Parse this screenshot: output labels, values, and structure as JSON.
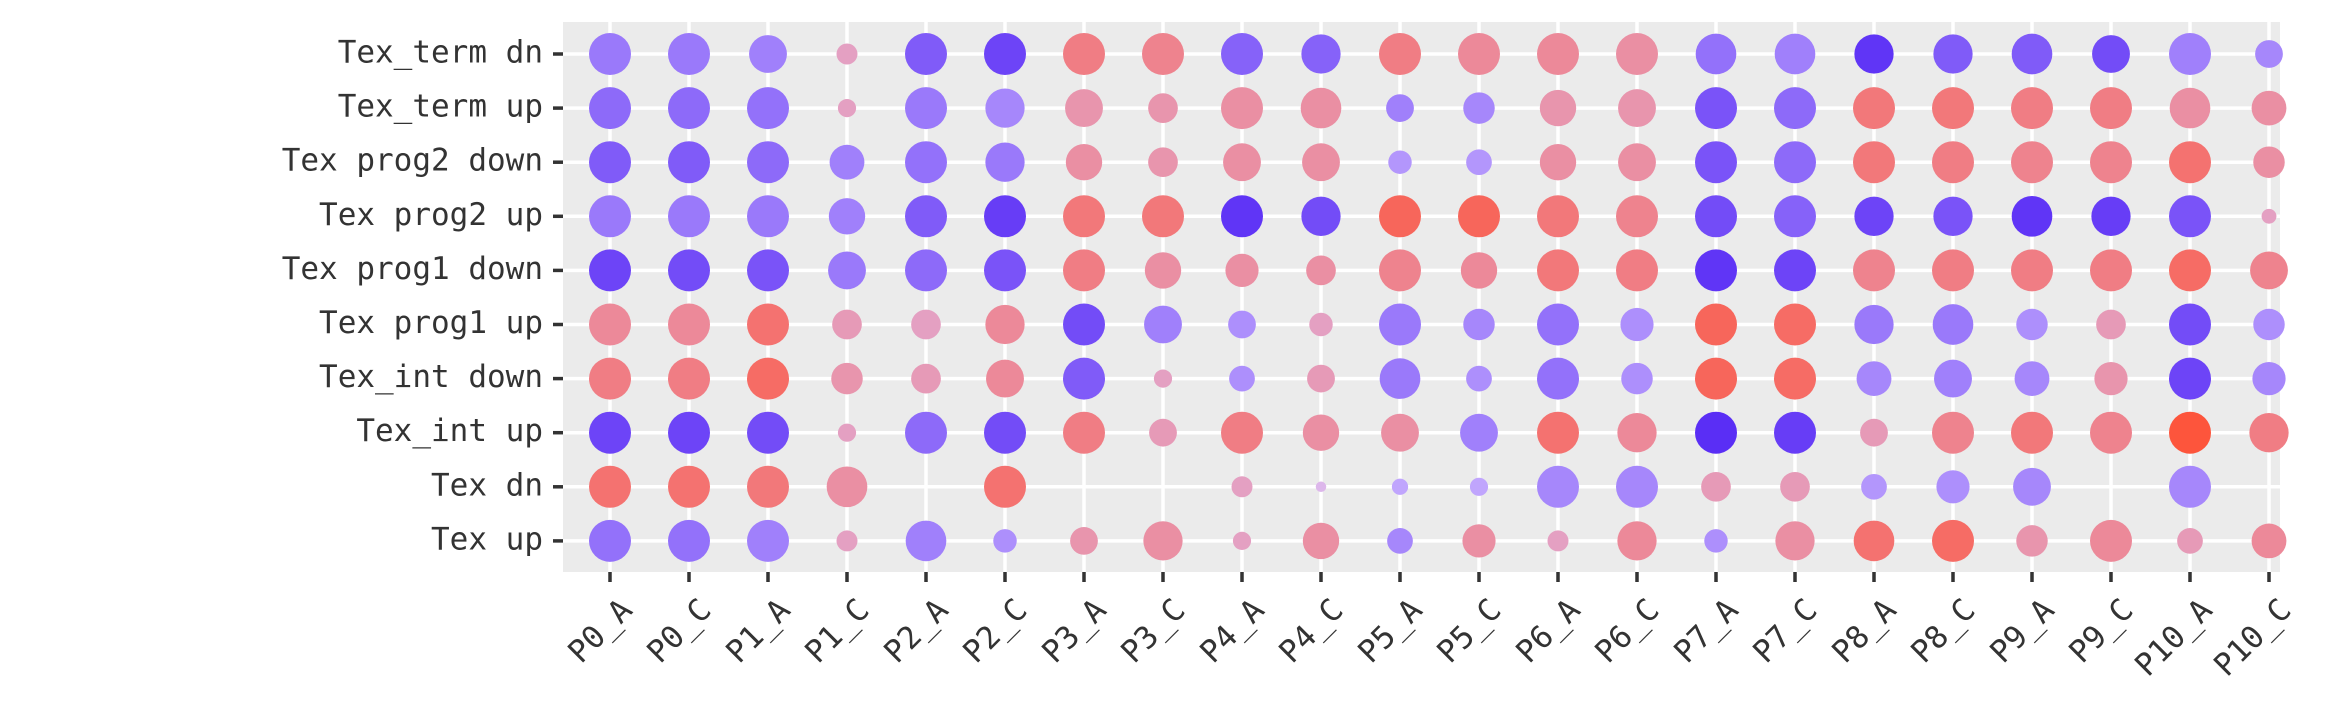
{
  "chart_data": {
    "type": "scatter",
    "subtype": "dot-matrix",
    "title": "",
    "xlabel": "",
    "ylabel": "",
    "x_categories": [
      "P0_A",
      "P0_C",
      "P1_A",
      "P1_C",
      "P2_A",
      "P2_C",
      "P3_A",
      "P3_C",
      "P4_A",
      "P4_C",
      "P5_A",
      "P5_C",
      "P6_A",
      "P6_C",
      "P7_A",
      "P7_C",
      "P8_A",
      "P8_C",
      "P9_A",
      "P9_C",
      "P10_A",
      "P10_C"
    ],
    "y_categories": [
      "Tex_term dn",
      "Tex_term up",
      "Tex prog2 down",
      "Tex prog2 up",
      "Tex prog1 down",
      "Tex prog1 up",
      "Tex_int down",
      "Tex_int up",
      "Tex dn",
      "Tex up"
    ],
    "grid": true,
    "legend": "none",
    "color_scale": {
      "low": "#5a2ef5",
      "mid": "#d9c3ff",
      "high": "#ff4f32"
    },
    "value_description": "size and color encode per-cell values (color: -1 = blue/purple .. 1 = red/orange; size: 0..1)",
    "rows": [
      {
        "name": "Tex_term dn",
        "color": [
          -0.5,
          -0.5,
          -0.45,
          0.3,
          -0.7,
          -0.85,
          0.6,
          0.55,
          -0.65,
          -0.65,
          0.6,
          0.5,
          0.5,
          0.45,
          -0.55,
          -0.45,
          -0.95,
          -0.7,
          -0.7,
          -0.8,
          -0.45,
          -0.4
        ],
        "size": [
          0.8,
          0.8,
          0.65,
          0.2,
          0.8,
          0.8,
          0.8,
          0.8,
          0.8,
          0.7,
          0.8,
          0.8,
          0.8,
          0.8,
          0.75,
          0.75,
          0.7,
          0.7,
          0.75,
          0.65,
          0.8,
          0.35
        ]
      },
      {
        "name": "Tex_term up",
        "color": [
          -0.6,
          -0.6,
          -0.55,
          0.3,
          -0.5,
          -0.4,
          0.4,
          0.4,
          0.45,
          0.45,
          -0.45,
          -0.4,
          0.4,
          0.4,
          -0.75,
          -0.6,
          0.65,
          0.65,
          0.6,
          0.6,
          0.45,
          0.45
        ],
        "size": [
          0.8,
          0.8,
          0.8,
          0.15,
          0.8,
          0.7,
          0.65,
          0.4,
          0.8,
          0.75,
          0.35,
          0.45,
          0.6,
          0.65,
          0.8,
          0.8,
          0.8,
          0.8,
          0.8,
          0.8,
          0.75,
          0.55
        ]
      },
      {
        "name": "Tex prog2 down",
        "color": [
          -0.7,
          -0.7,
          -0.6,
          -0.45,
          -0.55,
          -0.5,
          0.45,
          0.4,
          0.45,
          0.45,
          -0.3,
          -0.3,
          0.45,
          0.45,
          -0.75,
          -0.6,
          0.65,
          0.6,
          0.55,
          0.55,
          0.7,
          0.45
        ],
        "size": [
          0.8,
          0.8,
          0.8,
          0.55,
          0.8,
          0.7,
          0.6,
          0.4,
          0.65,
          0.65,
          0.25,
          0.3,
          0.6,
          0.65,
          0.8,
          0.8,
          0.8,
          0.8,
          0.8,
          0.8,
          0.8,
          0.45
        ]
      },
      {
        "name": "Tex prog2 up",
        "color": [
          -0.5,
          -0.5,
          -0.5,
          -0.45,
          -0.7,
          -0.9,
          0.65,
          0.65,
          -0.95,
          -0.8,
          0.8,
          0.8,
          0.65,
          0.55,
          -0.8,
          -0.65,
          -0.85,
          -0.75,
          -0.95,
          -0.9,
          -0.75,
          0.3
        ],
        "size": [
          0.8,
          0.8,
          0.8,
          0.6,
          0.8,
          0.8,
          0.8,
          0.8,
          0.8,
          0.7,
          0.8,
          0.8,
          0.8,
          0.8,
          0.8,
          0.8,
          0.7,
          0.7,
          0.75,
          0.7,
          0.8,
          0.1
        ]
      },
      {
        "name": "Tex prog1 down",
        "color": [
          -0.85,
          -0.8,
          -0.75,
          -0.5,
          -0.6,
          -0.75,
          0.6,
          0.45,
          0.45,
          0.45,
          0.55,
          0.5,
          0.65,
          0.6,
          -0.95,
          -0.85,
          0.55,
          0.6,
          0.6,
          0.6,
          0.75,
          0.55
        ],
        "size": [
          0.8,
          0.8,
          0.8,
          0.65,
          0.8,
          0.8,
          0.8,
          0.6,
          0.5,
          0.4,
          0.8,
          0.6,
          0.8,
          0.8,
          0.8,
          0.8,
          0.8,
          0.8,
          0.8,
          0.8,
          0.8,
          0.65
        ]
      },
      {
        "name": "Tex prog1 up",
        "color": [
          0.5,
          0.5,
          0.7,
          0.35,
          0.3,
          0.5,
          -0.8,
          -0.45,
          -0.35,
          0.3,
          -0.5,
          -0.4,
          -0.55,
          -0.35,
          0.8,
          0.75,
          -0.5,
          -0.5,
          -0.35,
          0.35,
          -0.8,
          -0.35
        ],
        "size": [
          0.8,
          0.8,
          0.8,
          0.4,
          0.4,
          0.7,
          0.8,
          0.65,
          0.35,
          0.25,
          0.8,
          0.45,
          0.8,
          0.5,
          0.8,
          0.8,
          0.7,
          0.75,
          0.45,
          0.4,
          0.8,
          0.45
        ]
      },
      {
        "name": "Tex_int down",
        "color": [
          0.6,
          0.6,
          0.75,
          0.4,
          0.35,
          0.5,
          -0.7,
          0.3,
          -0.35,
          0.35,
          -0.5,
          -0.35,
          -0.55,
          -0.35,
          0.8,
          0.75,
          -0.4,
          -0.45,
          -0.4,
          0.4,
          -0.85,
          -0.4
        ],
        "size": [
          0.8,
          0.8,
          0.8,
          0.45,
          0.4,
          0.65,
          0.8,
          0.15,
          0.3,
          0.35,
          0.75,
          0.3,
          0.8,
          0.45,
          0.8,
          0.8,
          0.55,
          0.65,
          0.55,
          0.5,
          0.8,
          0.5
        ]
      },
      {
        "name": "Tex_int up",
        "color": [
          -0.85,
          -0.85,
          -0.8,
          0.3,
          -0.6,
          -0.8,
          0.6,
          0.35,
          0.6,
          0.45,
          0.45,
          -0.45,
          0.7,
          0.5,
          -1.0,
          -0.9,
          0.35,
          0.55,
          0.65,
          0.55,
          0.95,
          0.6
        ],
        "size": [
          0.8,
          0.8,
          0.8,
          0.15,
          0.8,
          0.8,
          0.8,
          0.35,
          0.8,
          0.6,
          0.65,
          0.65,
          0.8,
          0.7,
          0.8,
          0.8,
          0.35,
          0.8,
          0.8,
          0.8,
          0.8,
          0.7
        ]
      },
      {
        "name": "Tex dn",
        "color": [
          0.7,
          0.7,
          0.65,
          0.45,
          0.0,
          0.7,
          0.0,
          0.0,
          0.3,
          0.1,
          -0.2,
          -0.2,
          -0.4,
          -0.4,
          0.35,
          0.35,
          -0.3,
          -0.35,
          -0.4,
          0.0,
          -0.4,
          0.0
        ],
        "size": [
          0.8,
          0.8,
          0.8,
          0.75,
          0.0,
          0.8,
          0.0,
          0.0,
          0.2,
          0.05,
          0.12,
          0.15,
          0.8,
          0.8,
          0.4,
          0.4,
          0.3,
          0.5,
          0.65,
          0.0,
          0.8,
          0.0
        ]
      },
      {
        "name": "Tex up",
        "color": [
          -0.55,
          -0.55,
          -0.45,
          0.3,
          -0.45,
          -0.35,
          0.4,
          0.45,
          0.3,
          0.45,
          -0.4,
          0.45,
          0.3,
          0.5,
          -0.35,
          0.45,
          0.7,
          0.75,
          0.4,
          0.5,
          0.35,
          0.5
        ],
        "size": [
          0.8,
          0.8,
          0.8,
          0.2,
          0.75,
          0.25,
          0.35,
          0.7,
          0.15,
          0.6,
          0.3,
          0.5,
          0.2,
          0.7,
          0.25,
          0.7,
          0.75,
          0.8,
          0.45,
          0.8,
          0.3,
          0.55
        ]
      }
    ]
  }
}
